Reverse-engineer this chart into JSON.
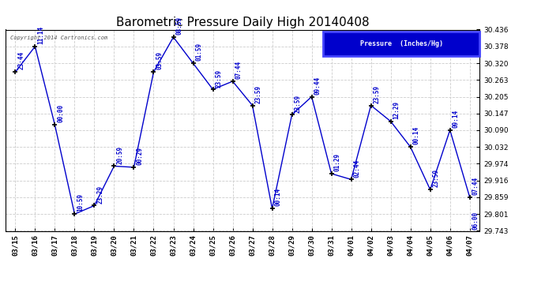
{
  "title": "Barometric Pressure Daily High 20140408",
  "copyright": "Copyright 2014 Cartronics.com",
  "legend_label": "Pressure  (Inches/Hg)",
  "ylim": [
    29.743,
    30.436
  ],
  "yticks": [
    29.743,
    29.801,
    29.859,
    29.916,
    29.974,
    30.032,
    30.09,
    30.147,
    30.205,
    30.263,
    30.32,
    30.378,
    30.436
  ],
  "line_color": "#0000cc",
  "marker_color": "#000000",
  "background_color": "#ffffff",
  "grid_color": "#cccccc",
  "dates": [
    "03/15",
    "03/16",
    "03/17",
    "03/18",
    "03/19",
    "03/20",
    "03/21",
    "03/22",
    "03/23",
    "03/24",
    "03/25",
    "03/26",
    "03/27",
    "03/28",
    "03/29",
    "03/30",
    "03/31",
    "04/01",
    "04/02",
    "04/03",
    "04/04",
    "04/05",
    "04/06",
    "04/07"
  ],
  "values": [
    30.29,
    30.378,
    30.108,
    29.801,
    29.83,
    29.966,
    29.962,
    30.29,
    30.41,
    30.32,
    30.23,
    30.258,
    30.175,
    29.82,
    30.143,
    30.205,
    29.94,
    29.92,
    30.175,
    30.12,
    30.032,
    29.885,
    30.09,
    29.859
  ],
  "time_labels": [
    "23:44",
    "11:14",
    "00:00",
    "10:59",
    "23:29",
    "20:59",
    "00:29",
    "03:59",
    "08:59",
    "01:59",
    "23:59",
    "07:44",
    "23:59",
    "00:14",
    "23:59",
    "09:44",
    "01:29",
    "02:44",
    "23:59",
    "12:29",
    "00:14",
    "23:59",
    "09:14",
    "07:44"
  ],
  "extra_label": "06:00",
  "legend_bg": "#0000cc",
  "legend_border": "#4444ff",
  "title_fontsize": 11,
  "tick_fontsize": 6.5,
  "label_fontsize": 5.5
}
